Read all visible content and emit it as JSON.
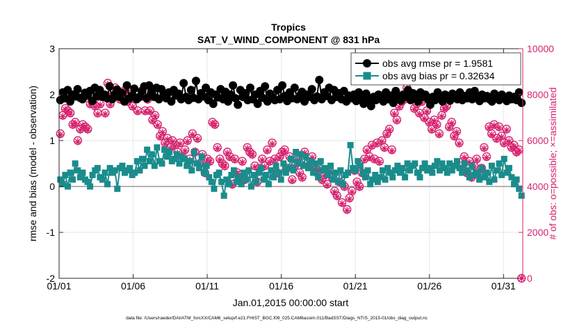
{
  "chart_data": {
    "type": "line",
    "title": "Tropics",
    "subtitle": "SAT_V_WIND_COMPONENT @ 831 hPa",
    "xlabel": "Jan.01,2015 00:00:00 start",
    "ylabel": "rmse and bias (model - observation)",
    "y2label": "# of obs: o=possible; ×=assimilated",
    "footer": "data file: /Users/raeder/DAI/ATM_forcXX/CAM6_setup/f.e21.FHIST_BGC.f09_025.CAM6assim.011/BadSST/Diags_NTrS_2015-01/obs_diag_output.nc",
    "x_tick_labels": [
      "01/01",
      "01/06",
      "01/11",
      "01/16",
      "01/21",
      "01/26",
      "01/31"
    ],
    "x_tick_days": [
      1,
      6,
      11,
      16,
      21,
      26,
      31
    ],
    "xlim_days": [
      1,
      32.3
    ],
    "ylim": [
      -2,
      3
    ],
    "y_ticks": [
      "-2",
      "-1",
      "0",
      "1",
      "2",
      "3"
    ],
    "y2lim": [
      0,
      10000
    ],
    "y2_ticks": [
      "0",
      "2000",
      "4000",
      "6000",
      "8000",
      "10000"
    ],
    "grid": true,
    "legend_position": "top-right",
    "colors": {
      "rmse": "#000000",
      "bias": "#1a8c8c",
      "obs": "#d6226e",
      "zero_line": "#b3b3b3"
    },
    "series": [
      {
        "name": "obs avg rmse pr = 1.9581",
        "axis": "left",
        "marker": "circle",
        "values": [
          1.88,
          2.05,
          1.92,
          2.1,
          1.85,
          2.0,
          1.96,
          2.12,
          1.93,
          1.9,
          2.04,
          1.98,
          2.08,
          1.86,
          2.15,
          1.97,
          2.1,
          1.95,
          2.0,
          1.92,
          2.18,
          1.9,
          2.0,
          2.11,
          1.95,
          2.03,
          1.85,
          2.2,
          1.92,
          1.98,
          2.13,
          1.9,
          1.95,
          2.07,
          2.18,
          1.92,
          2.2,
          2.05,
          1.95,
          2.15,
          1.9,
          2.12,
          2.0,
          1.92,
          2.05,
          1.85,
          2.1,
          1.98,
          2.02,
          1.9,
          2.25,
          1.95,
          1.88,
          2.1,
          1.93,
          2.3,
          1.9,
          2.03,
          1.96,
          2.15,
          1.88,
          2.05,
          1.8,
          2.0,
          1.94,
          2.12,
          1.9,
          2.06,
          1.85,
          2.0,
          2.2,
          1.92,
          1.78,
          2.1,
          1.95,
          2.03,
          1.88,
          2.15,
          1.9,
          2.0,
          1.8,
          2.08,
          1.93,
          2.18,
          1.85,
          2.02,
          1.95,
          1.88,
          2.1,
          1.9,
          2.2,
          1.97,
          1.86,
          2.05,
          1.92,
          2.15,
          1.9,
          1.98,
          2.06,
          1.85,
          2.0,
          1.95,
          2.12,
          1.88,
          1.96,
          2.32,
          1.9,
          2.05,
          1.97,
          2.15,
          1.88,
          2.1,
          1.95,
          2.03,
          1.9,
          2.08,
          1.85,
          1.98,
          1.92,
          2.0,
          1.86,
          2.05,
          1.95,
          1.8,
          2.02,
          1.9,
          1.75,
          1.95,
          1.88,
          2.0,
          1.93,
          1.85,
          2.05,
          1.9,
          1.98,
          1.82,
          2.08,
          1.93,
          1.87,
          2.0,
          1.95,
          2.1,
          1.88,
          2.03,
          1.92,
          1.85,
          2.05,
          1.95,
          2.0,
          1.9,
          1.78,
          1.95,
          1.88,
          2.05,
          1.92,
          1.85,
          2.0,
          1.93,
          1.87,
          2.02,
          1.95,
          1.9,
          2.05,
          1.88,
          1.97,
          1.92,
          2.05,
          1.9,
          2.08,
          1.95,
          1.86,
          2.0,
          1.92,
          1.97,
          1.9,
          1.85,
          2.02,
          1.95,
          1.88,
          2.0,
          1.93,
          1.86,
          1.98,
          1.9,
          1.95,
          1.88,
          2.05,
          1.82
        ]
      },
      {
        "name": "obs avg bias pr = 0.32634",
        "axis": "left",
        "marker": "square",
        "values": [
          0.15,
          0.05,
          0.25,
          0.0,
          0.3,
          0.15,
          0.5,
          0.35,
          0.2,
          0.3,
          0.15,
          0.1,
          0.0,
          0.25,
          0.35,
          0.4,
          0.2,
          0.15,
          0.3,
          0.05,
          0.4,
          0.3,
          0.35,
          -0.05,
          0.4,
          0.45,
          0.3,
          0.35,
          0.4,
          0.25,
          0.3,
          0.55,
          0.35,
          0.6,
          0.45,
          0.8,
          0.55,
          0.7,
          0.45,
          0.85,
          0.55,
          0.5,
          0.8,
          0.65,
          0.75,
          0.55,
          0.6,
          0.7,
          0.5,
          0.65,
          0.6,
          0.45,
          0.55,
          0.35,
          0.75,
          0.5,
          0.4,
          0.65,
          0.3,
          0.45,
          0.2,
          0.1,
          -0.05,
          0.25,
          0.3,
          0.1,
          -0.2,
          0.15,
          0.05,
          0.25,
          0.35,
          0.1,
          0.2,
          0.05,
          0.3,
          0.15,
          0.35,
          0.0,
          0.25,
          0.1,
          0.3,
          0.4,
          0.15,
          0.25,
          0.05,
          0.35,
          0.2,
          0.45,
          0.3,
          0.15,
          0.5,
          0.3,
          0.4,
          0.6,
          0.35,
          0.75,
          0.5,
          0.7,
          0.45,
          0.65,
          0.4,
          0.55,
          0.3,
          0.5,
          0.2,
          0.55,
          0.35,
          0.4,
          0.25,
          0.45,
          0.15,
          0.3,
          0.1,
          0.35,
          0.05,
          0.25,
          0.3,
          0.9,
          0.4,
          0.35,
          0.55,
          0.45,
          0.3,
          0.2,
          0.35,
          0.05,
          0.15,
          0.25,
          0.1,
          0.2,
          0.35,
          0.15,
          0.4,
          0.3,
          0.2,
          0.35,
          0.45,
          0.3,
          0.4,
          0.2,
          0.5,
          0.35,
          0.45,
          0.5,
          0.3,
          0.2,
          0.4,
          0.5,
          0.35,
          0.4,
          0.3,
          0.45,
          0.55,
          0.35,
          0.5,
          0.4,
          0.3,
          0.5,
          0.35,
          0.45,
          0.55,
          0.4,
          0.3,
          0.5,
          0.35,
          0.2,
          0.45,
          0.25,
          0.3,
          0.15,
          0.4,
          0.2,
          0.3,
          0.1,
          0.45,
          0.15,
          0.35,
          0.5,
          0.25,
          0.6,
          0.3,
          0.4,
          0.2,
          0.05,
          0.15,
          -0.05,
          -0.2
        ]
      },
      {
        "name": "possible",
        "axis": "right",
        "marker": "circle-open",
        "values": [
          6300,
          7100,
          7400,
          7300,
          7200,
          6700,
          6800,
          6000,
          6500,
          6700,
          6600,
          6500,
          7600,
          7800,
          7500,
          7200,
          7600,
          7900,
          7200,
          8500,
          7600,
          8100,
          8300,
          8000,
          7800,
          8100,
          8200,
          7700,
          8000,
          7500,
          7800,
          7300,
          7900,
          8200,
          7300,
          7800,
          7300,
          6900,
          7100,
          6700,
          6200,
          6400,
          5900,
          6100,
          5700,
          6000,
          5800,
          5500,
          5900,
          5300,
          5600,
          6000,
          5200,
          6300,
          5500,
          6100,
          5000,
          5400,
          4600,
          5200,
          5100,
          6800,
          6700,
          5700,
          5200,
          5000,
          4900,
          5500,
          5300,
          4100,
          5200,
          4600,
          4500,
          5100,
          4300,
          5700,
          5500,
          5400,
          4900,
          4200,
          4800,
          5200,
          4900,
          5600,
          5100,
          5900,
          5200,
          4600,
          5300,
          5500,
          5600,
          4800,
          5300,
          4300,
          4900,
          5200,
          4600,
          4400,
          5500,
          5000,
          4900,
          5300,
          4800,
          4600,
          4800,
          4300,
          4500,
          4100,
          4700,
          4400,
          3800,
          3600,
          4200,
          3300,
          4000,
          3000,
          3500,
          3800,
          4700,
          4200,
          4000,
          4600,
          5200,
          5600,
          5300,
          5800,
          5200,
          5900,
          5100,
          6000,
          5700,
          6300,
          6500,
          5600,
          7200,
          6900,
          7500,
          7700,
          7800,
          8300,
          7900,
          7800,
          7400,
          7600,
          7200,
          7700,
          7000,
          7300,
          6800,
          6500,
          6900,
          6700,
          6300,
          7100,
          7400,
          7500,
          6600,
          6800,
          6200,
          6400,
          5900,
          4900,
          5300,
          4600,
          5100,
          4400,
          4900,
          5200,
          4500,
          4800,
          5700,
          5300,
          6600,
          6300,
          6700,
          6100,
          6600,
          6200,
          5900,
          6500,
          6000,
          5700,
          5800,
          5500,
          5600,
          0
        ]
      },
      {
        "name": "assimilated",
        "axis": "right",
        "marker": "asterisk",
        "values": [
          6250,
          7050,
          7350,
          7250,
          7150,
          6650,
          6750,
          5950,
          6450,
          6650,
          6550,
          6450,
          7550,
          7750,
          7450,
          7150,
          7550,
          7850,
          7150,
          8450,
          7550,
          8050,
          8250,
          7950,
          7750,
          8050,
          8150,
          7650,
          7950,
          7450,
          7750,
          7250,
          7850,
          8150,
          7250,
          7750,
          7250,
          6850,
          7050,
          6650,
          6150,
          6350,
          5850,
          6050,
          5650,
          5950,
          5750,
          5450,
          5850,
          5250,
          5550,
          5950,
          5150,
          6250,
          5450,
          6050,
          4950,
          5350,
          4550,
          5150,
          5050,
          6750,
          6650,
          5650,
          5150,
          4950,
          4850,
          5450,
          5250,
          4050,
          5150,
          4550,
          4450,
          5050,
          4250,
          5650,
          5450,
          5350,
          4850,
          4150,
          4750,
          5150,
          4850,
          5550,
          5050,
          5850,
          5150,
          4550,
          5250,
          5450,
          5550,
          4750,
          5250,
          4250,
          4850,
          5150,
          4550,
          4350,
          5450,
          4950,
          4850,
          5250,
          4750,
          4550,
          4750,
          4250,
          4450,
          4050,
          4650,
          4350,
          3750,
          3550,
          4150,
          3250,
          3950,
          2950,
          3450,
          3750,
          4650,
          4150,
          3950,
          4550,
          5150,
          5550,
          5250,
          5750,
          5150,
          5850,
          5050,
          5950,
          5650,
          6250,
          6450,
          5550,
          7150,
          6850,
          7450,
          7650,
          7750,
          8250,
          7850,
          7750,
          7350,
          7550,
          7150,
          7650,
          6950,
          7250,
          6750,
          6450,
          6850,
          6650,
          6250,
          7050,
          7350,
          7450,
          6550,
          6750,
          6150,
          6350,
          5850,
          4850,
          5250,
          4550,
          5050,
          4350,
          4850,
          5150,
          4450,
          4750,
          5650,
          5250,
          6550,
          6250,
          6650,
          6050,
          6550,
          6150,
          5850,
          6450,
          5950,
          5650,
          5750,
          5450,
          5550,
          0
        ]
      }
    ]
  }
}
